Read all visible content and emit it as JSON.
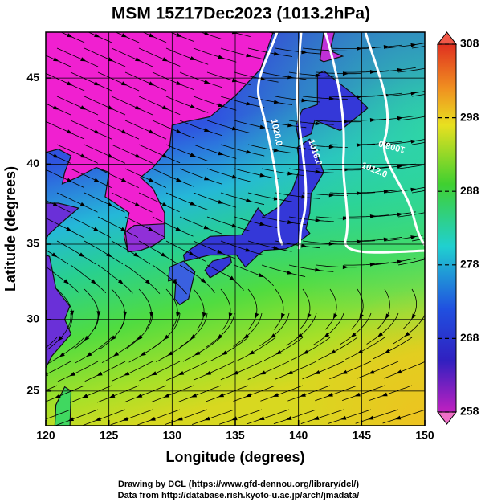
{
  "title": "MSM 15Z17Dec2023 (1013.2hPa)",
  "map": {
    "xlabel": "Longitude (degrees)",
    "ylabel": "Latitude  (degrees)",
    "xlim": [
      120,
      150
    ],
    "ylim": [
      22.5,
      47.5
    ],
    "xticks": [
      120,
      125,
      130,
      135,
      140,
      145,
      150
    ],
    "yticks": [
      25,
      30,
      35,
      40,
      45
    ],
    "grid": true
  },
  "colorbar": {
    "lim": [
      258,
      308
    ],
    "ticks": [
      258,
      268,
      278,
      288,
      298,
      308
    ]
  },
  "contour_labels": [
    "1020.0",
    "1016.0",
    "1012.0",
    "1008.0"
  ],
  "credits": [
    "Drawing by DCL (https://www.gfd-dennou.org/library/dcl/)",
    "Data from http://database.rish.kyoto-u.ac.jp/arch/jmadata/"
  ]
}
